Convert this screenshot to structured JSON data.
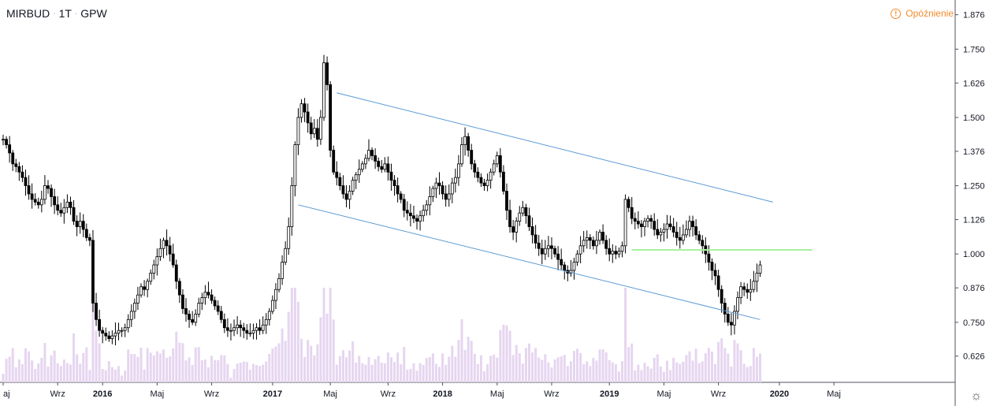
{
  "header": {
    "symbol": "MIRBUD",
    "interval": "1T",
    "exchange": "GPW",
    "separator": "·"
  },
  "status": {
    "delay_label": "Opóźnienie",
    "delay_icon": "exclamation-circle-icon",
    "accent": "#f48a2a"
  },
  "settings_icon": "gear-icon",
  "chart_data": {
    "type": "candlestick",
    "symbol": "MIRBUD",
    "interval": "1T",
    "exchange": "GPW",
    "ylim": [
      0.53,
      1.93
    ],
    "y_ticks": [
      "1.876",
      "1.750",
      "1.626",
      "1.500",
      "1.376",
      "1.250",
      "1.126",
      "1.000",
      "0.876",
      "0.750",
      "0.626"
    ],
    "x_ticks": [
      "aj",
      "Wrz",
      "2016",
      "Maj",
      "Wrz",
      "2017",
      "Maj",
      "Wrz",
      "2018",
      "Maj",
      "Wrz",
      "2019",
      "Maj",
      "Wrz",
      "2020",
      "Maj"
    ],
    "x_tick_weeks": [
      0,
      17,
      31,
      48,
      65,
      84,
      102,
      120,
      137,
      154,
      171,
      189,
      206,
      223,
      242,
      259
    ],
    "first_week": "2015-05",
    "weekly_close": [
      1.42,
      1.4,
      1.37,
      1.33,
      1.32,
      1.3,
      1.28,
      1.25,
      1.22,
      1.2,
      1.19,
      1.18,
      1.2,
      1.25,
      1.24,
      1.21,
      1.18,
      1.16,
      1.15,
      1.17,
      1.19,
      1.17,
      1.12,
      1.1,
      1.12,
      1.09,
      1.06,
      1.05,
      0.82,
      0.76,
      0.72,
      0.71,
      0.7,
      0.69,
      0.7,
      0.71,
      0.72,
      0.72,
      0.73,
      0.76,
      0.79,
      0.82,
      0.85,
      0.88,
      0.87,
      0.9,
      0.93,
      0.96,
      0.99,
      1.02,
      1.05,
      1.03,
      1.0,
      0.96,
      0.9,
      0.85,
      0.8,
      0.78,
      0.76,
      0.75,
      0.78,
      0.82,
      0.84,
      0.86,
      0.85,
      0.83,
      0.81,
      0.79,
      0.76,
      0.73,
      0.72,
      0.72,
      0.73,
      0.74,
      0.73,
      0.72,
      0.71,
      0.71,
      0.72,
      0.73,
      0.72,
      0.74,
      0.76,
      0.79,
      0.83,
      0.87,
      0.91,
      0.97,
      1.02,
      1.1,
      1.25,
      1.4,
      1.5,
      1.55,
      1.52,
      1.48,
      1.44,
      1.46,
      1.42,
      1.5,
      1.7,
      1.62,
      1.38,
      1.3,
      1.28,
      1.25,
      1.22,
      1.2,
      1.23,
      1.27,
      1.29,
      1.31,
      1.33,
      1.35,
      1.38,
      1.36,
      1.34,
      1.32,
      1.31,
      1.33,
      1.3,
      1.27,
      1.25,
      1.22,
      1.2,
      1.16,
      1.15,
      1.14,
      1.13,
      1.12,
      1.14,
      1.16,
      1.18,
      1.21,
      1.24,
      1.26,
      1.25,
      1.22,
      1.2,
      1.22,
      1.26,
      1.28,
      1.33,
      1.4,
      1.43,
      1.38,
      1.33,
      1.3,
      1.28,
      1.26,
      1.25,
      1.27,
      1.3,
      1.33,
      1.36,
      1.3,
      1.23,
      1.16,
      1.1,
      1.08,
      1.12,
      1.15,
      1.17,
      1.14,
      1.1,
      1.07,
      1.04,
      1.02,
      1.0,
      1.02,
      1.03,
      1.02,
      1.0,
      0.98,
      0.96,
      0.94,
      0.93,
      0.94,
      0.97,
      1.0,
      1.03,
      1.05,
      1.06,
      1.05,
      1.03,
      1.05,
      1.08,
      1.05,
      1.02,
      1.0,
      1.01,
      1.0,
      1.01,
      1.03,
      1.2,
      1.17,
      1.13,
      1.12,
      1.11,
      1.1,
      1.12,
      1.13,
      1.12,
      1.09,
      1.07,
      1.08,
      1.09,
      1.11,
      1.1,
      1.08,
      1.06,
      1.05,
      1.07,
      1.09,
      1.12,
      1.1,
      1.07,
      1.05,
      1.03,
      1.0,
      0.97,
      0.94,
      0.92,
      0.87,
      0.82,
      0.78,
      0.75,
      0.74,
      0.79,
      0.84,
      0.88,
      0.87,
      0.86,
      0.87,
      0.9,
      0.93,
      0.96
    ],
    "weekly_volume_note": "volume histogram at bottom (pale purple)",
    "channel_upper": [
      {
        "week": 104,
        "price": 1.59
      },
      {
        "week": 240,
        "price": 1.19
      }
    ],
    "channel_lower": [
      {
        "week": 92,
        "price": 1.18
      },
      {
        "week": 236,
        "price": 0.76
      }
    ],
    "horizontal_level": {
      "price": 1.015,
      "from_week": 196,
      "to_week": 240
    },
    "colors": {
      "up": "#ffffff",
      "down": "#000000",
      "wick": "#000000",
      "channel": "#5b9bd5",
      "level": "#a8f0a0",
      "volume": "#e6d5f0"
    }
  }
}
